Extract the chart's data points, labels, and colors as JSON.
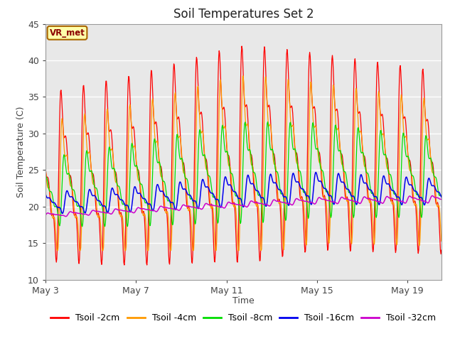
{
  "title": "Soil Temperatures Set 2",
  "xlabel": "Time",
  "ylabel": "Soil Temperature (C)",
  "ylim": [
    10,
    45
  ],
  "xlim_days": [
    0,
    17.5
  ],
  "annotation": "VR_met",
  "plot_bg_color": "#e8e8e8",
  "series": {
    "Tsoil -2cm": {
      "color": "#ff0000"
    },
    "Tsoil -4cm": {
      "color": "#ff9900"
    },
    "Tsoil -8cm": {
      "color": "#00dd00"
    },
    "Tsoil -16cm": {
      "color": "#0000ee"
    },
    "Tsoil -32cm": {
      "color": "#cc00cc"
    }
  },
  "x_tick_labels": [
    "May 3",
    "May 7",
    "May 11",
    "May 15",
    "May 19"
  ],
  "x_tick_positions": [
    0,
    4,
    8,
    12,
    16
  ],
  "y_ticks": [
    10,
    15,
    20,
    25,
    30,
    35,
    40,
    45
  ],
  "grid_color": "#ffffff",
  "title_fontsize": 12,
  "axis_label_fontsize": 9,
  "tick_fontsize": 9,
  "legend_fontsize": 9
}
